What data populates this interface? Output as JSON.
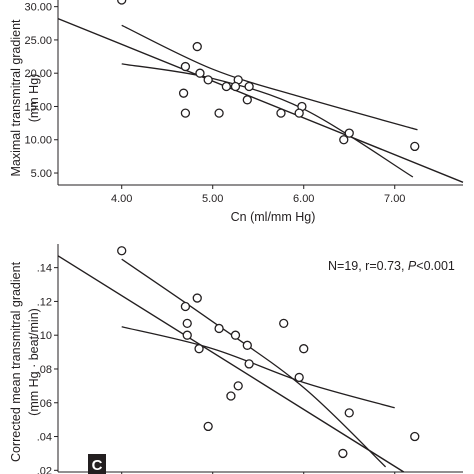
{
  "chart_data": [
    {
      "type": "scatter",
      "ylabel_line1": "Maximal transmitral gradient",
      "ylabel_line2": "(mm Hg)",
      "xlabel": "Cn (ml/mm Hg)",
      "xlim": [
        3.3,
        7.75
      ],
      "ylim": [
        3.2,
        31.0
      ],
      "xticks": [
        "4.00",
        "5.00",
        "6.00",
        "7.00"
      ],
      "yticks": [
        "5.00",
        "10.00",
        "15.00",
        "20.00",
        "25.00",
        "30.00"
      ],
      "points": [
        {
          "x": 4.0,
          "y": 31.0
        },
        {
          "x": 4.83,
          "y": 24.0
        },
        {
          "x": 4.7,
          "y": 21.0
        },
        {
          "x": 4.86,
          "y": 20.0
        },
        {
          "x": 4.95,
          "y": 19.0
        },
        {
          "x": 5.28,
          "y": 19.0
        },
        {
          "x": 5.15,
          "y": 18.0
        },
        {
          "x": 5.25,
          "y": 18.0
        },
        {
          "x": 5.4,
          "y": 18.0
        },
        {
          "x": 4.68,
          "y": 17.0
        },
        {
          "x": 5.38,
          "y": 16.0
        },
        {
          "x": 5.98,
          "y": 15.0
        },
        {
          "x": 4.7,
          "y": 14.0
        },
        {
          "x": 5.07,
          "y": 14.0
        },
        {
          "x": 5.75,
          "y": 14.0
        },
        {
          "x": 5.95,
          "y": 14.0
        },
        {
          "x": 6.5,
          "y": 11.0
        },
        {
          "x": 6.44,
          "y": 10.0
        },
        {
          "x": 7.22,
          "y": 9.0
        }
      ],
      "fit": {
        "x": [
          3.3,
          7.75
        ],
        "y": [
          28.2,
          3.6
        ]
      },
      "ci_upper": {
        "x": [
          4.0,
          5.0,
          6.0,
          7.25
        ],
        "y": [
          27.2,
          20.6,
          16.3,
          11.5
        ]
      },
      "ci_lower": {
        "x": [
          4.0,
          5.0,
          6.0,
          7.2
        ],
        "y": [
          21.4,
          19.2,
          14.6,
          4.4
        ]
      }
    },
    {
      "type": "scatter",
      "ylabel_line1": "Corrected mean transmitral gradient",
      "ylabel_line2": "(mm Hg · beat/min)",
      "xlim": [
        3.3,
        7.75
      ],
      "ylim": [
        0.019,
        0.154
      ],
      "yticks": [
        ".02",
        ".04",
        ".06",
        ".08",
        ".10",
        ".12",
        ".14"
      ],
      "stat_prefix": "N=19, r=0.73, ",
      "stat_p": "P",
      "stat_suffix": "<0.001",
      "panel_label": "C",
      "points": [
        {
          "x": 4.0,
          "y": 0.15
        },
        {
          "x": 4.83,
          "y": 0.122
        },
        {
          "x": 4.7,
          "y": 0.117
        },
        {
          "x": 4.72,
          "y": 0.107
        },
        {
          "x": 4.72,
          "y": 0.1
        },
        {
          "x": 4.85,
          "y": 0.092
        },
        {
          "x": 5.07,
          "y": 0.104
        },
        {
          "x": 5.25,
          "y": 0.1
        },
        {
          "x": 5.38,
          "y": 0.094
        },
        {
          "x": 5.4,
          "y": 0.083
        },
        {
          "x": 5.28,
          "y": 0.07
        },
        {
          "x": 5.2,
          "y": 0.064
        },
        {
          "x": 4.95,
          "y": 0.046
        },
        {
          "x": 5.78,
          "y": 0.107
        },
        {
          "x": 6.0,
          "y": 0.092
        },
        {
          "x": 5.95,
          "y": 0.075
        },
        {
          "x": 6.5,
          "y": 0.054
        },
        {
          "x": 6.43,
          "y": 0.03
        },
        {
          "x": 7.22,
          "y": 0.04
        }
      ],
      "fit": {
        "x": [
          3.3,
          7.1
        ],
        "y": [
          0.147,
          0.019
        ]
      },
      "ci_upper": {
        "x": [
          4.0,
          5.0,
          6.0,
          6.9
        ],
        "y": [
          0.145,
          0.108,
          0.069,
          0.022
        ]
      },
      "ci_lower": {
        "x": [
          4.0,
          5.0,
          6.0,
          7.0
        ],
        "y": [
          0.105,
          0.092,
          0.072,
          0.057
        ]
      }
    }
  ]
}
